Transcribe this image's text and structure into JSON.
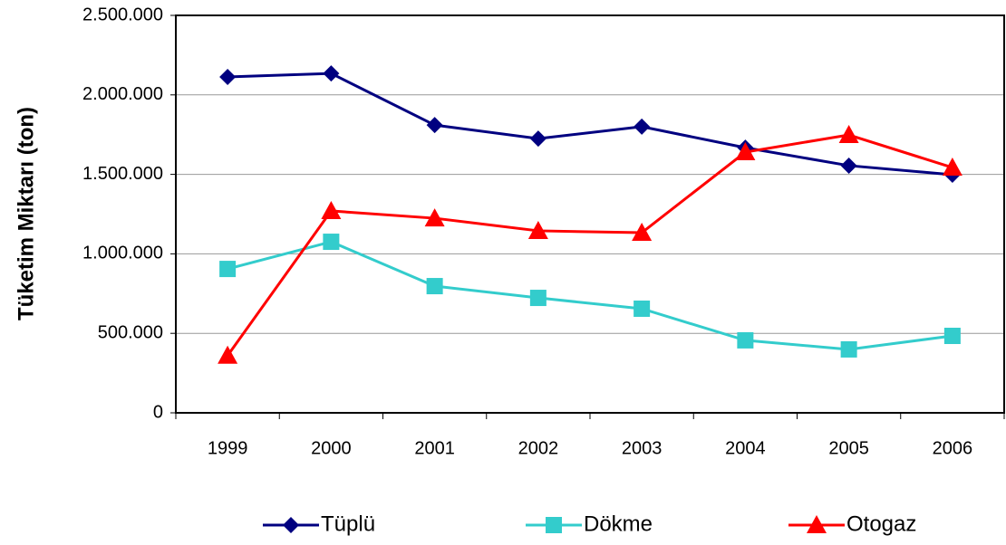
{
  "chart_data": {
    "type": "line",
    "y_label": "Tüketim Miktarı (ton)",
    "categories": [
      "1999",
      "2000",
      "2001",
      "2002",
      "2003",
      "2004",
      "2005",
      "2006"
    ],
    "series": [
      {
        "name": "Tüplü",
        "color": "#000080",
        "marker": "diamond",
        "values": [
          2113000,
          2135000,
          1810000,
          1725000,
          1800000,
          1668000,
          1555000,
          1498000
        ]
      },
      {
        "name": "Dökme",
        "color": "#33cccc",
        "marker": "square",
        "values": [
          905000,
          1076000,
          797000,
          723000,
          655000,
          456000,
          399000,
          484000
        ]
      },
      {
        "name": "Otogaz",
        "color": "#ff0000",
        "marker": "triangle",
        "values": [
          360000,
          1270000,
          1224000,
          1145000,
          1133000,
          1640000,
          1748000,
          1543000
        ]
      }
    ],
    "ylim": [
      0,
      2500000
    ],
    "yticks": [
      0,
      {
        "value": 500000,
        "label": "500.000"
      },
      {
        "value": 1000000,
        "label": "1.000.000"
      },
      {
        "value": 1500000,
        "label": "1.500.000"
      },
      {
        "value": 2000000,
        "label": "2.000.000"
      },
      {
        "value": 2500000,
        "label": "2.500.000"
      }
    ],
    "grid": true,
    "legend": "bottom"
  }
}
